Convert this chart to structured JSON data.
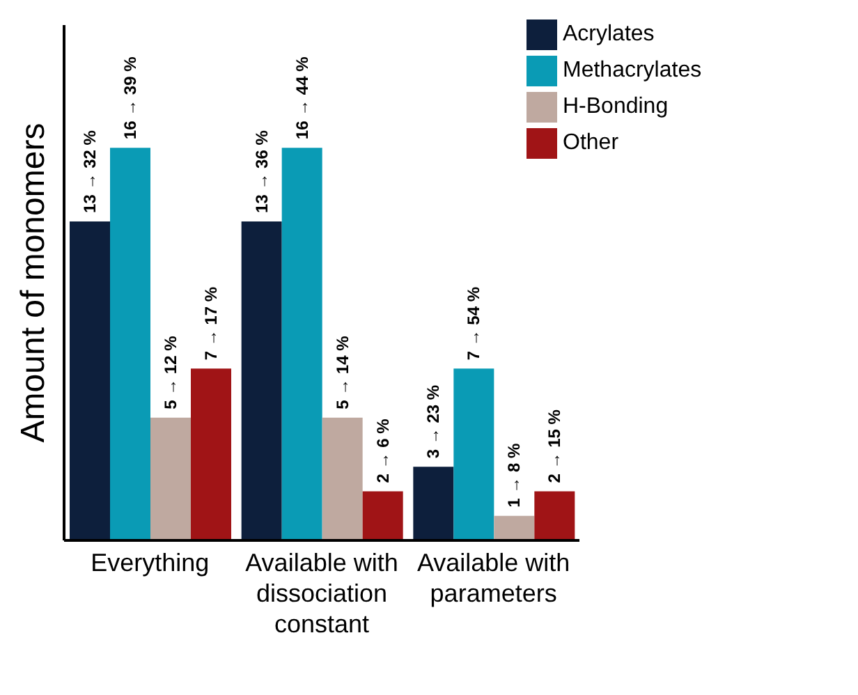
{
  "chart_data": {
    "type": "bar",
    "ylabel": "Amount of monomers",
    "categories": [
      "Everything",
      "Available with dissociation constant",
      "Available with parameters"
    ],
    "series": [
      {
        "name": "Acrylates",
        "color": "#0d1f3c",
        "values": [
          13,
          13,
          3
        ],
        "value_labels": [
          "13 → 32 %",
          "13 → 36 %",
          "3 → 23 %"
        ]
      },
      {
        "name": "Methacrylates",
        "color": "#0a9bb5",
        "values": [
          16,
          16,
          7
        ],
        "value_labels": [
          "16 → 39 %",
          "16 → 44 %",
          "7 → 54 %"
        ]
      },
      {
        "name": "H-Bonding",
        "color": "#bfa9a0",
        "values": [
          5,
          5,
          1
        ],
        "value_labels": [
          "5 → 12 %",
          "5 → 14 %",
          "1 → 8 %"
        ]
      },
      {
        "name": "Other",
        "color": "#a01416",
        "values": [
          7,
          2,
          2
        ],
        "value_labels": [
          "7 → 17 %",
          "2 → 6 %",
          "2 → 15 %"
        ]
      }
    ],
    "ylim": [
      0,
      21
    ],
    "tick_labels": "x",
    "legend": "top right"
  }
}
